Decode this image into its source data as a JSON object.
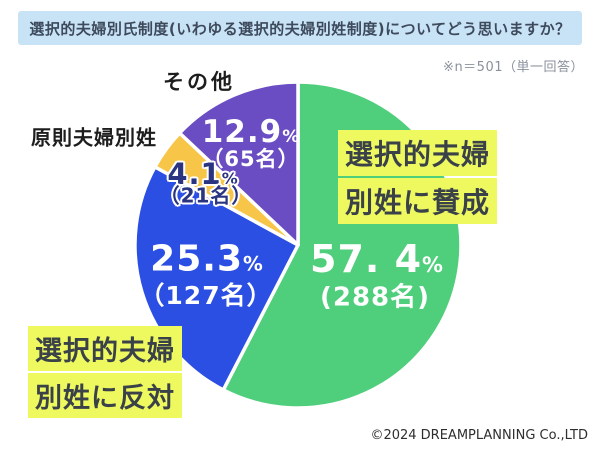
{
  "title": "選択的夫婦別氏制度(いわゆる選択的夫婦別姓制度)についてどう思いますか？",
  "note": "※n＝501（単一回答）",
  "copyright": "©2024 DREAMPLANNING Co.,LTD",
  "colors": {
    "green": "#4FCE7B",
    "blue": "#2B4FE3",
    "yellow": "#F7C548",
    "purple": "#6A4DC3",
    "highlight": "#EDF95E",
    "banner_bg": "#C9E3F6",
    "banner_text": "#3D4A5C",
    "navy_label": "#2A3480"
  },
  "labels": {
    "other": "その他",
    "principle": "原則夫婦別姓",
    "agree_line1": "選択的夫婦",
    "agree_line2": "別姓に賛成",
    "oppose_line1": "選択的夫婦",
    "oppose_line2": "別姓に反対"
  },
  "chart_data": {
    "type": "pie",
    "title": "選択的夫婦別氏制度(いわゆる選択的夫婦別姓制度)についてどう思いますか？",
    "n": 501,
    "start_angle_deg": 0,
    "direction": "clockwise",
    "percent_symbol": "%",
    "slices": [
      {
        "label": "選択的夫婦別姓に賛成",
        "pct": 57.4,
        "count": 288,
        "color": "#4FCE7B",
        "pct_display": "57. 4",
        "count_display": "(288名)"
      },
      {
        "label": "選択的夫婦別姓に反対",
        "pct": 25.3,
        "count": 127,
        "color": "#2B4FE3",
        "pct_display": "25.3",
        "count_display": "（127名）"
      },
      {
        "label": "原則夫婦別姓",
        "pct": 4.1,
        "count": 21,
        "color": "#F7C548",
        "pct_display": "4.1",
        "count_display": "（21名）"
      },
      {
        "label": "その他",
        "pct": 12.9,
        "count": 65,
        "color": "#6A4DC3",
        "pct_display": "12.9",
        "count_display": "（65名）"
      }
    ]
  }
}
